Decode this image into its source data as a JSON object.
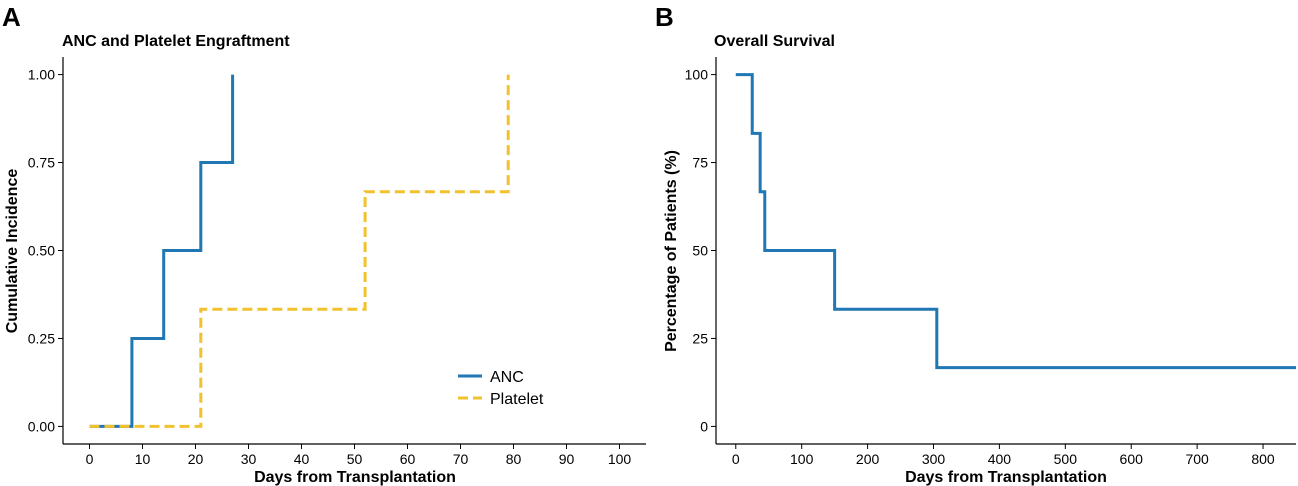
{
  "panels": {
    "a": {
      "label": "A"
    },
    "b": {
      "label": "B"
    }
  },
  "colors": {
    "anc": "#1f77b4",
    "platelet": "#f2c12e",
    "axis": "#000000"
  },
  "chart_data": [
    {
      "type": "line",
      "subtype": "step",
      "title": "ANC and Platelet Engraftment",
      "xlabel": "Days from Transplantation",
      "ylabel": "Cumulative Incidence",
      "xlim": [
        -5,
        105
      ],
      "ylim": [
        -0.05,
        1.05
      ],
      "xticks": [
        0,
        10,
        20,
        30,
        40,
        50,
        60,
        70,
        80,
        90,
        100
      ],
      "xtick_labels": [
        "0",
        "10",
        "20",
        "30",
        "40",
        "50",
        "60",
        "70",
        "80",
        "90",
        "100"
      ],
      "yticks": [
        0,
        0.25,
        0.5,
        0.75,
        1
      ],
      "ytick_labels": [
        "0.00",
        "0.25",
        "0.50",
        "0.75",
        "1.00"
      ],
      "legend_position": "bottom-right",
      "series": [
        {
          "name": "ANC",
          "style": "solid",
          "color": "#1f77b4",
          "x": [
            0,
            8,
            14,
            21,
            27
          ],
          "y": [
            0,
            0.25,
            0.5,
            0.75,
            1.0
          ]
        },
        {
          "name": "Platelet",
          "style": "dashed",
          "color": "#f2c12e",
          "x": [
            0,
            21,
            52,
            79
          ],
          "y": [
            0,
            0.333,
            0.667,
            1.0
          ]
        }
      ]
    },
    {
      "type": "line",
      "subtype": "step",
      "title": "Overall Survival",
      "xlabel": "Days from Transplantation",
      "ylabel": "Percentage of Patients (%)",
      "xlim": [
        -30,
        850
      ],
      "ylim": [
        -5,
        105
      ],
      "xticks": [
        0,
        100,
        200,
        300,
        400,
        500,
        600,
        700,
        800
      ],
      "xtick_labels": [
        "0",
        "100",
        "200",
        "300",
        "400",
        "500",
        "600",
        "700",
        "800"
      ],
      "yticks": [
        0,
        25,
        50,
        75,
        100
      ],
      "ytick_labels": [
        "0",
        "25",
        "50",
        "75",
        "100"
      ],
      "series": [
        {
          "name": "Overall Survival",
          "style": "solid",
          "color": "#1f77b4",
          "x": [
            0,
            25,
            37,
            44,
            150,
            305,
            850
          ],
          "y": [
            100,
            83.3,
            66.7,
            50,
            33.3,
            16.7,
            16.7
          ]
        }
      ]
    }
  ]
}
